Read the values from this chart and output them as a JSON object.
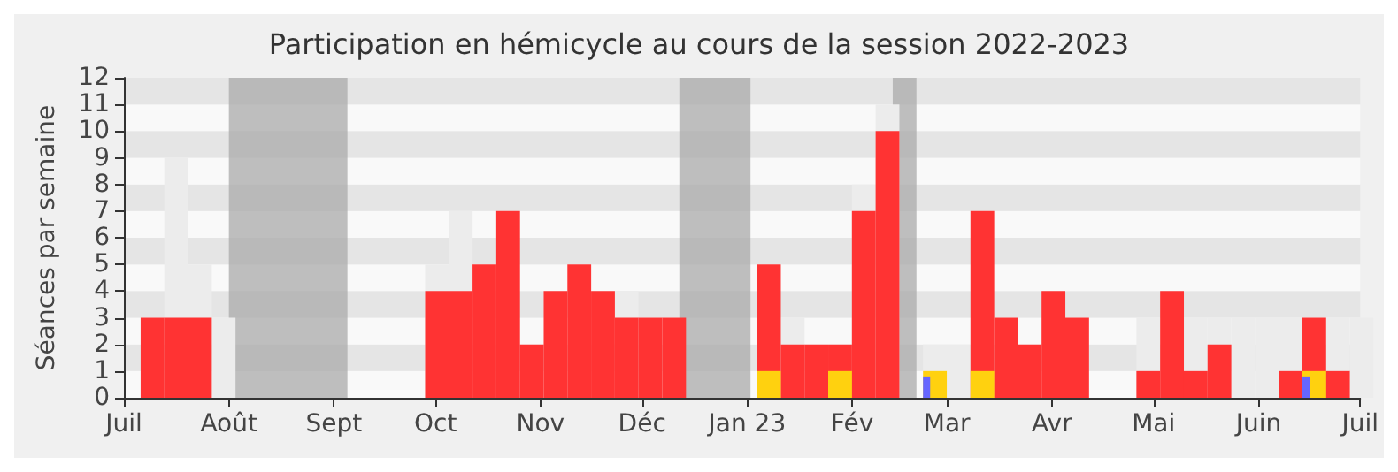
{
  "chart_data": {
    "type": "bar",
    "title": "Participation en hémicycle au cours de la session 2022-2023",
    "ylabel": "Séances par semaine",
    "x": [
      "2022-07-07",
      "2022-07-14",
      "2022-07-21",
      "2022-07-28",
      "2022-08-04",
      "2022-08-11",
      "2022-08-18",
      "2022-08-25",
      "2022-09-01",
      "2022-09-08",
      "2022-09-15",
      "2022-09-22",
      "2022-09-29",
      "2022-10-06",
      "2022-10-13",
      "2022-10-20",
      "2022-10-27",
      "2022-11-03",
      "2022-11-10",
      "2022-11-17",
      "2022-11-24",
      "2022-12-01",
      "2022-12-08",
      "2022-12-15",
      "2022-12-22",
      "2022-12-29",
      "2023-01-05",
      "2023-01-12",
      "2023-01-19",
      "2023-01-26",
      "2023-02-02",
      "2023-02-09",
      "2023-02-16",
      "2023-02-23",
      "2023-03-02",
      "2023-03-09",
      "2023-03-16",
      "2023-03-23",
      "2023-03-30",
      "2023-04-06",
      "2023-04-13",
      "2023-04-20",
      "2023-04-27",
      "2023-05-04",
      "2023-05-11",
      "2023-05-18",
      "2023-05-25",
      "2023-06-01",
      "2023-06-08",
      "2023-06-15",
      "2023-06-22",
      "2023-06-29"
    ],
    "series": [
      {
        "color": "#ececec",
        "values": [
          null,
          9,
          5,
          3,
          null,
          null,
          null,
          null,
          null,
          null,
          null,
          null,
          5,
          7,
          null,
          null,
          null,
          null,
          null,
          null,
          4,
          null,
          null,
          null,
          null,
          null,
          null,
          3,
          null,
          null,
          8,
          11,
          null,
          2,
          2,
          null,
          null,
          null,
          null,
          null,
          null,
          null,
          3,
          null,
          3,
          3,
          3,
          3,
          3,
          null,
          3,
          3
        ]
      },
      {
        "color": "#ff3333",
        "values": [
          3,
          3,
          3,
          null,
          null,
          null,
          null,
          null,
          null,
          null,
          null,
          null,
          4,
          4,
          5,
          7,
          2,
          4,
          5,
          4,
          3,
          3,
          3,
          null,
          null,
          null,
          5,
          2,
          2,
          2,
          7,
          10,
          null,
          null,
          null,
          7,
          3,
          2,
          4,
          3,
          null,
          null,
          1,
          4,
          1,
          2,
          null,
          null,
          1,
          3,
          1,
          null
        ]
      },
      {
        "color": "#ffd10f",
        "values": [
          null,
          null,
          null,
          null,
          null,
          null,
          null,
          null,
          null,
          null,
          null,
          null,
          null,
          null,
          null,
          null,
          null,
          null,
          null,
          null,
          null,
          null,
          null,
          null,
          null,
          null,
          1,
          null,
          null,
          1,
          null,
          null,
          null,
          1,
          null,
          1,
          null,
          null,
          null,
          null,
          null,
          null,
          null,
          null,
          null,
          null,
          null,
          null,
          null,
          1,
          null,
          null
        ]
      },
      {
        "color": "#6666ff",
        "values": [
          null,
          null,
          null,
          null,
          null,
          null,
          null,
          null,
          null,
          null,
          null,
          null,
          null,
          null,
          null,
          null,
          null,
          null,
          null,
          null,
          null,
          null,
          null,
          null,
          null,
          null,
          null,
          null,
          null,
          null,
          null,
          null,
          null,
          0.8,
          null,
          null,
          null,
          null,
          null,
          null,
          null,
          null,
          null,
          null,
          null,
          null,
          null,
          null,
          null,
          0.8,
          null,
          null
        ]
      }
    ],
    "bands": [
      {
        "axis": "x",
        "from": "2022-08-01",
        "to": "2022-09-05",
        "color": "#aaaaaa"
      },
      {
        "axis": "x",
        "from": "2022-12-12",
        "to": "2023-01-02",
        "color": "#aaaaaa"
      },
      {
        "axis": "x",
        "from": "2023-02-13",
        "to": "2023-02-20",
        "color": "#aaaaaa"
      }
    ],
    "xlim": [
      "2022-07-01",
      "2023-07-01"
    ],
    "xticks": [
      {
        "value": "2022-07-01",
        "label": "Juil"
      },
      {
        "value": "2022-08-01",
        "label": "Août"
      },
      {
        "value": "2022-09-01",
        "label": "Sept"
      },
      {
        "value": "2022-10-01",
        "label": "Oct"
      },
      {
        "value": "2022-11-01",
        "label": "Nov"
      },
      {
        "value": "2022-12-01",
        "label": "Déc"
      },
      {
        "value": "2023-01-01",
        "label": "Jan 23"
      },
      {
        "value": "2023-02-01",
        "label": "Fév"
      },
      {
        "value": "2023-03-01",
        "label": "Mar"
      },
      {
        "value": "2023-04-01",
        "label": "Avr"
      },
      {
        "value": "2023-05-01",
        "label": "Mai"
      },
      {
        "value": "2023-06-01",
        "label": "Juin"
      },
      {
        "value": "2023-07-01",
        "label": "Juil"
      }
    ],
    "ylim": [
      0,
      12
    ],
    "yticks": [
      0,
      1,
      2,
      3,
      4,
      5,
      6,
      7,
      8,
      9,
      10,
      11,
      12
    ]
  }
}
